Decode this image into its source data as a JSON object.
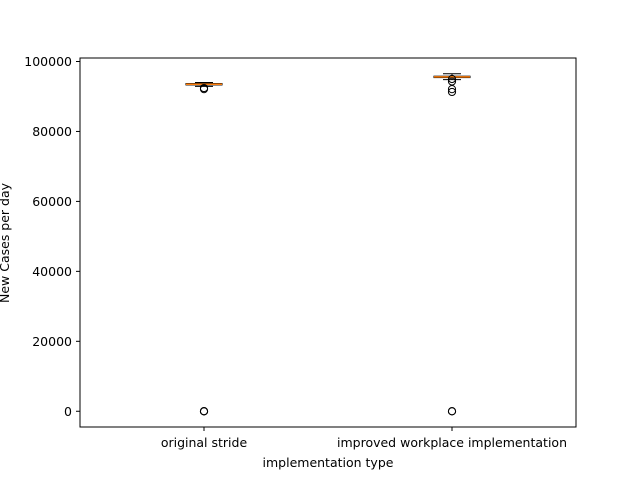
{
  "chart_data": {
    "type": "box",
    "title": "",
    "xlabel": "implementation type",
    "ylabel": "New Cases per day",
    "ylim": [
      -4500,
      101000
    ],
    "yticks": [
      0,
      20000,
      40000,
      60000,
      80000,
      100000
    ],
    "ytick_labels": [
      "0",
      "20000",
      "40000",
      "60000",
      "80000",
      "100000"
    ],
    "grid": false,
    "categories": [
      "original stride",
      "improved workplace implementation"
    ],
    "series": [
      {
        "category": "original stride",
        "whisker_low": 92900,
        "q1": 93300,
        "median": 93500,
        "q3": 93700,
        "whisker_high": 94000,
        "outliers": [
          92400,
          92100,
          0,
          0,
          0
        ]
      },
      {
        "category": "improved workplace implementation",
        "whisker_low": 94800,
        "q1": 95400,
        "median": 95600,
        "q3": 95800,
        "whisker_high": 96500,
        "outliers": [
          95000,
          94300,
          92100,
          91300,
          0,
          0
        ]
      }
    ],
    "colors": {
      "box": "#000000",
      "median": "#ff7f0e",
      "outlier": "#000000"
    }
  }
}
